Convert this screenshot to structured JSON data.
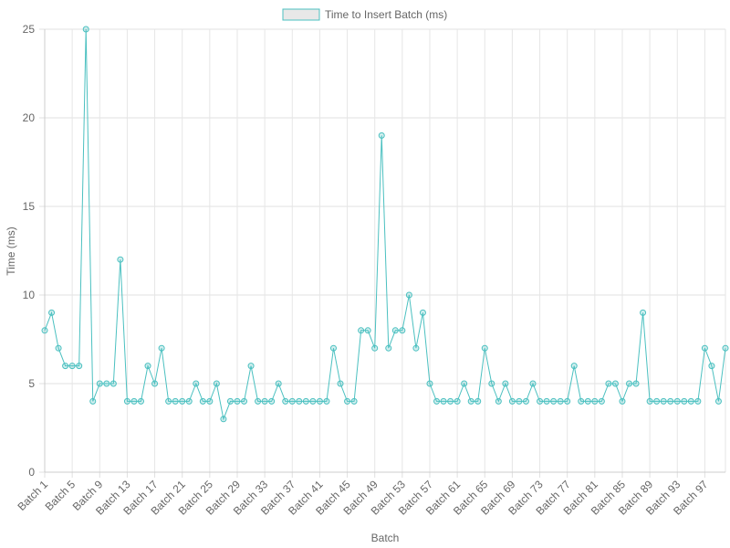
{
  "chart_data": {
    "type": "line",
    "title": "",
    "xlabel": "Batch",
    "ylabel": "Time (ms)",
    "ylim": [
      0,
      25
    ],
    "yticks": [
      0,
      5,
      10,
      15,
      20,
      25
    ],
    "grid": true,
    "legend_position": "top-center",
    "series": [
      {
        "name": "Time to Insert Batch (ms)",
        "color": "#4bc0c0",
        "legend_fill": "#e8e8e8",
        "values": [
          8,
          9,
          7,
          6,
          6,
          6,
          25,
          4,
          5,
          5,
          5,
          12,
          4,
          4,
          4,
          6,
          5,
          7,
          4,
          4,
          4,
          4,
          5,
          4,
          4,
          5,
          3,
          4,
          4,
          4,
          6,
          4,
          4,
          4,
          5,
          4,
          4,
          4,
          4,
          4,
          4,
          4,
          7,
          5,
          4,
          4,
          8,
          8,
          7,
          19,
          7,
          8,
          8,
          10,
          7,
          9,
          5,
          4,
          4,
          4,
          4,
          5,
          4,
          4,
          7,
          5,
          4,
          5,
          4,
          4,
          4,
          5,
          4,
          4,
          4,
          4,
          4,
          6,
          4,
          4,
          4,
          4,
          5,
          5,
          4,
          5,
          5,
          9,
          4,
          4,
          4,
          4,
          4,
          4,
          4,
          4,
          7,
          6,
          4,
          7
        ]
      }
    ],
    "categories": [
      "Batch 1",
      "Batch 2",
      "Batch 3",
      "Batch 4",
      "Batch 5",
      "Batch 6",
      "Batch 7",
      "Batch 8",
      "Batch 9",
      "Batch 10",
      "Batch 11",
      "Batch 12",
      "Batch 13",
      "Batch 14",
      "Batch 15",
      "Batch 16",
      "Batch 17",
      "Batch 18",
      "Batch 19",
      "Batch 20",
      "Batch 21",
      "Batch 22",
      "Batch 23",
      "Batch 24",
      "Batch 25",
      "Batch 26",
      "Batch 27",
      "Batch 28",
      "Batch 29",
      "Batch 30",
      "Batch 31",
      "Batch 32",
      "Batch 33",
      "Batch 34",
      "Batch 35",
      "Batch 36",
      "Batch 37",
      "Batch 38",
      "Batch 39",
      "Batch 40",
      "Batch 41",
      "Batch 42",
      "Batch 43",
      "Batch 44",
      "Batch 45",
      "Batch 46",
      "Batch 47",
      "Batch 48",
      "Batch 49",
      "Batch 50",
      "Batch 51",
      "Batch 52",
      "Batch 53",
      "Batch 54",
      "Batch 55",
      "Batch 56",
      "Batch 57",
      "Batch 58",
      "Batch 59",
      "Batch 60",
      "Batch 61",
      "Batch 62",
      "Batch 63",
      "Batch 64",
      "Batch 65",
      "Batch 66",
      "Batch 67",
      "Batch 68",
      "Batch 69",
      "Batch 70",
      "Batch 71",
      "Batch 72",
      "Batch 73",
      "Batch 74",
      "Batch 75",
      "Batch 76",
      "Batch 77",
      "Batch 78",
      "Batch 79",
      "Batch 80",
      "Batch 81",
      "Batch 82",
      "Batch 83",
      "Batch 84",
      "Batch 85",
      "Batch 86",
      "Batch 87",
      "Batch 88",
      "Batch 89",
      "Batch 90",
      "Batch 91",
      "Batch 92",
      "Batch 93",
      "Batch 94",
      "Batch 95",
      "Batch 96",
      "Batch 97",
      "Batch 98",
      "Batch 99",
      "Batch 100"
    ],
    "label_every": 4
  }
}
